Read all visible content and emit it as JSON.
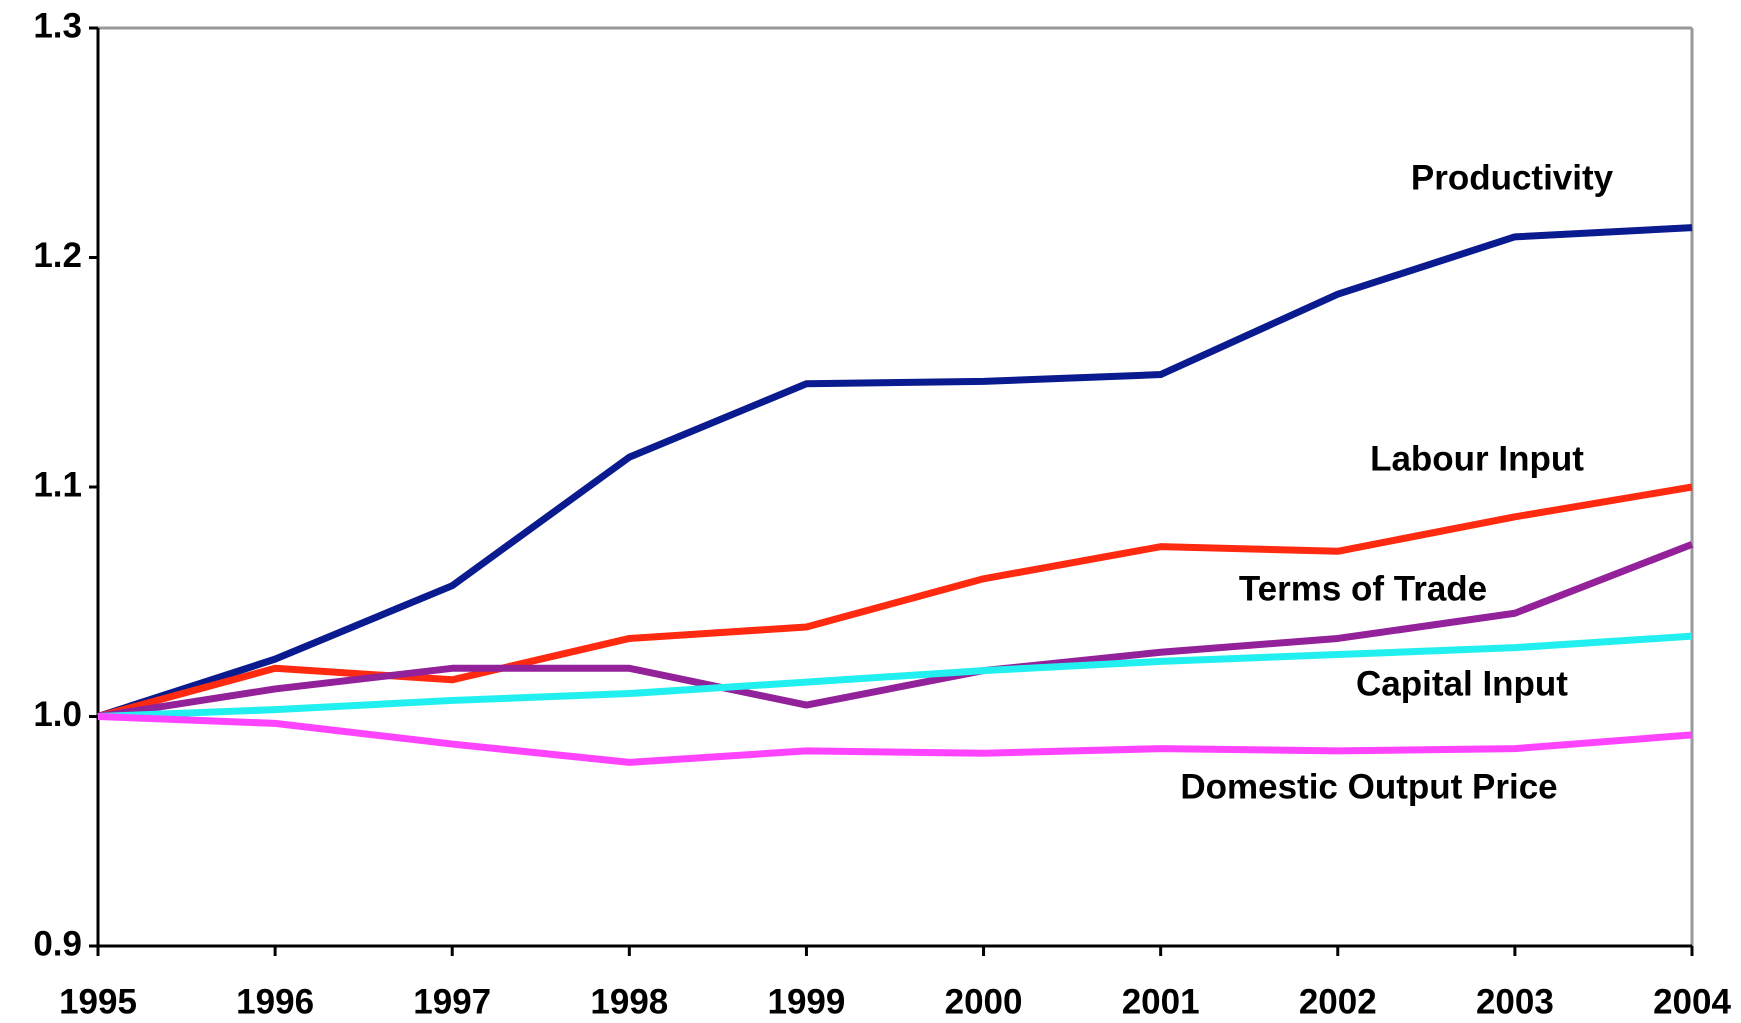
{
  "chart_data": {
    "type": "line",
    "x": [
      1995,
      1996,
      1997,
      1998,
      1999,
      2000,
      2001,
      2002,
      2003,
      2004
    ],
    "xlim": [
      1995,
      2004
    ],
    "xticks": [
      1995,
      1996,
      1997,
      1998,
      1999,
      2000,
      2001,
      2002,
      2003,
      2004
    ],
    "ylim": [
      0.9,
      1.3
    ],
    "yticks": [
      0.9,
      {
        "value": 1,
        "label": "1.0"
      },
      1.1,
      1.2,
      1.3
    ],
    "series": [
      {
        "name": "Productivity",
        "color": "#0a1a8f",
        "values": [
          1.0,
          1.025,
          1.057,
          1.113,
          1.145,
          1.146,
          1.149,
          1.184,
          1.209,
          1.213
        ]
      },
      {
        "name": "Labour Input",
        "color": "#ff2a0f",
        "values": [
          1.0,
          1.021,
          1.016,
          1.034,
          1.039,
          1.06,
          1.074,
          1.072,
          1.087,
          1.1
        ]
      },
      {
        "name": "Terms of Trade",
        "color": "#92219a",
        "values": [
          1.0,
          1.012,
          1.021,
          1.021,
          1.005,
          1.02,
          1.028,
          1.034,
          1.045,
          1.075
        ]
      },
      {
        "name": "Capital Input",
        "color": "#22f0f0",
        "values": [
          1.0,
          1.003,
          1.007,
          1.01,
          1.015,
          1.02,
          1.024,
          1.027,
          1.03,
          1.035
        ]
      },
      {
        "name": "Domestic Output Price",
        "color": "#ff44ff",
        "values": [
          1.0,
          0.997,
          0.988,
          0.98,
          0.985,
          0.984,
          0.986,
          0.985,
          0.986,
          0.992
        ]
      }
    ]
  }
}
